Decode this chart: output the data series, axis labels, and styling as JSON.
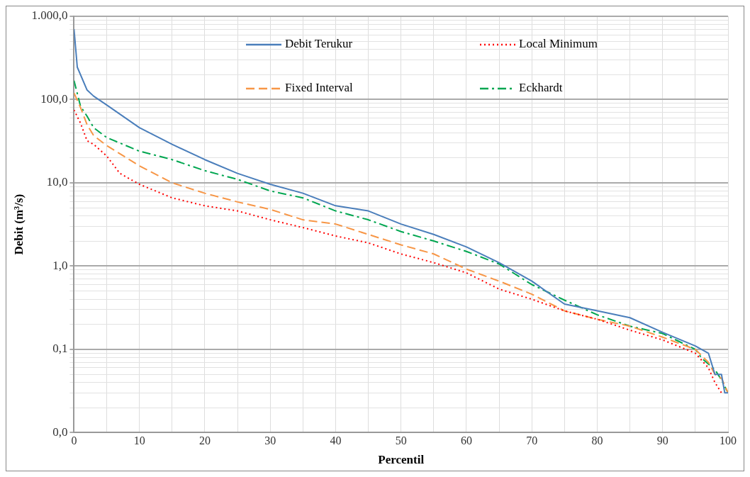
{
  "chart_data": {
    "type": "line",
    "xlabel": "Percentil",
    "ylabel": "Debit (m³/s)",
    "log": "y",
    "grid": true,
    "legend": "top right",
    "marker": "none",
    "xlim": [
      0,
      100
    ],
    "xticks": [
      0,
      {
        "value": 5,
        "label": null
      },
      10,
      {
        "value": 15,
        "label": null
      },
      20,
      {
        "value": 25,
        "label": null
      },
      30,
      {
        "value": 35,
        "label": null
      },
      40,
      {
        "value": 45,
        "label": null
      },
      50,
      {
        "value": 55,
        "label": null
      },
      60,
      {
        "value": 65,
        "label": null
      },
      70,
      {
        "value": 75,
        "label": null
      },
      80,
      {
        "value": 85,
        "label": null
      },
      90,
      {
        "value": 95,
        "label": null
      },
      100
    ],
    "ylim": [
      0.01,
      1000
    ],
    "yticks": [
      {
        "value": 0.01,
        "label": "0,0"
      },
      {
        "value": 0.02,
        "label": null
      },
      {
        "value": 0.03,
        "label": null
      },
      {
        "value": 0.04,
        "label": null
      },
      {
        "value": 0.05,
        "label": null
      },
      {
        "value": 0.06,
        "label": null
      },
      {
        "value": 0.07,
        "label": null
      },
      {
        "value": 0.08,
        "label": null
      },
      {
        "value": 0.09,
        "label": null
      },
      {
        "value": 0.1,
        "label": "0,1"
      },
      {
        "value": 0.2,
        "label": null
      },
      {
        "value": 0.3,
        "label": null
      },
      {
        "value": 0.4,
        "label": null
      },
      {
        "value": 0.5,
        "label": null
      },
      {
        "value": 0.6,
        "label": null
      },
      {
        "value": 0.7,
        "label": null
      },
      {
        "value": 0.8,
        "label": null
      },
      {
        "value": 0.9,
        "label": null
      },
      {
        "value": 1,
        "label": "1,0"
      },
      {
        "value": 2,
        "label": null
      },
      {
        "value": 3,
        "label": null
      },
      {
        "value": 4,
        "label": null
      },
      {
        "value": 5,
        "label": null
      },
      {
        "value": 6,
        "label": null
      },
      {
        "value": 7,
        "label": null
      },
      {
        "value": 8,
        "label": null
      },
      {
        "value": 9,
        "label": null
      },
      {
        "value": 10,
        "label": "10,0"
      },
      {
        "value": 20,
        "label": null
      },
      {
        "value": 30,
        "label": null
      },
      {
        "value": 40,
        "label": null
      },
      {
        "value": 50,
        "label": null
      },
      {
        "value": 60,
        "label": null
      },
      {
        "value": 70,
        "label": null
      },
      {
        "value": 80,
        "label": null
      },
      {
        "value": 90,
        "label": null
      },
      {
        "value": 100,
        "label": "100,0"
      },
      {
        "value": 200,
        "label": null
      },
      {
        "value": 300,
        "label": null
      },
      {
        "value": 400,
        "label": null
      },
      {
        "value": 500,
        "label": null
      },
      {
        "value": 600,
        "label": null
      },
      {
        "value": 700,
        "label": null
      },
      {
        "value": 800,
        "label": null
      },
      {
        "value": 900,
        "label": null
      },
      {
        "value": 1000,
        "label": "1.000,0"
      }
    ],
    "series": [
      {
        "name": "Debit Terukur",
        "color": "#4a7ebb",
        "line_style": "solid",
        "x": [
          0,
          0.5,
          2,
          3,
          5,
          10,
          15,
          20,
          25,
          30,
          35,
          40,
          45,
          50,
          55,
          60,
          65,
          70,
          75,
          80,
          85,
          90,
          95,
          97,
          98,
          99,
          99.5,
          100
        ],
        "values": [
          700,
          245,
          130,
          110,
          86,
          46,
          29,
          19,
          13,
          9.6,
          7.5,
          5.3,
          4.6,
          3.2,
          2.4,
          1.7,
          1.1,
          0.66,
          0.35,
          0.29,
          0.24,
          0.16,
          0.11,
          0.09,
          0.05,
          0.05,
          0.03,
          0.03
        ]
      },
      {
        "name": "Local Minimum",
        "color": "#ff0000",
        "line_style": "dotted",
        "x": [
          0,
          1,
          2,
          3,
          5,
          7,
          10,
          15,
          20,
          25,
          30,
          35,
          40,
          45,
          50,
          55,
          60,
          65,
          70,
          75,
          80,
          85,
          90,
          95,
          97,
          98,
          99
        ],
        "values": [
          75,
          52,
          32,
          29,
          21,
          13,
          9.6,
          6.6,
          5.3,
          4.6,
          3.6,
          2.9,
          2.3,
          1.9,
          1.4,
          1.1,
          0.83,
          0.53,
          0.4,
          0.29,
          0.23,
          0.17,
          0.13,
          0.09,
          0.06,
          0.04,
          0.03
        ]
      },
      {
        "name": "Fixed Interval",
        "color": "#f79646",
        "line_style": "dashed",
        "x": [
          0,
          1,
          2,
          3,
          5,
          10,
          15,
          20,
          25,
          30,
          35,
          40,
          45,
          50,
          55,
          60,
          65,
          70,
          75,
          80,
          85,
          90,
          95,
          97,
          98,
          99,
          100
        ],
        "values": [
          120,
          80,
          50,
          37,
          28,
          16,
          10,
          7.5,
          5.9,
          4.8,
          3.6,
          3.2,
          2.4,
          1.8,
          1.4,
          0.92,
          0.66,
          0.46,
          0.29,
          0.23,
          0.19,
          0.14,
          0.1,
          0.07,
          0.05,
          0.045,
          0.03
        ]
      },
      {
        "name": "Eckhardt",
        "color": "#00a650",
        "line_style": "dashdot",
        "x": [
          0,
          1,
          2,
          3,
          5,
          10,
          15,
          20,
          25,
          30,
          35,
          40,
          45,
          50,
          55,
          60,
          65,
          70,
          75,
          80,
          85,
          90,
          95,
          96,
          98,
          99,
          100
        ],
        "values": [
          169,
          83,
          63,
          46,
          35,
          24,
          19,
          14,
          11,
          8,
          6.6,
          4.6,
          3.6,
          2.6,
          2,
          1.5,
          1.06,
          0.6,
          0.39,
          0.26,
          0.19,
          0.155,
          0.1,
          0.078,
          0.057,
          0.043,
          0.03
        ]
      }
    ]
  }
}
